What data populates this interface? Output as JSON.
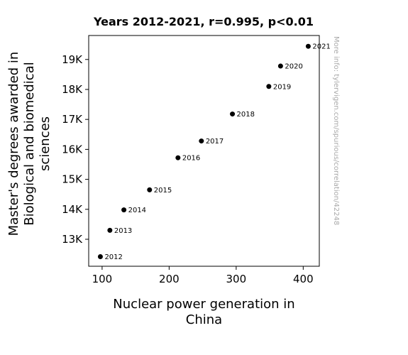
{
  "chart_data": {
    "type": "scatter",
    "title": "Years 2012-2021, r=0.995, p<0.01",
    "xlabel": [
      "Nuclear power generation in",
      "China"
    ],
    "ylabel": [
      "Master's degrees awarded in",
      "Biological and biomedical",
      "sciences"
    ],
    "xlim": [
      80,
      424
    ],
    "ylim": [
      12100,
      19800
    ],
    "xticks": [
      100,
      200,
      300,
      400
    ],
    "xtick_labels": [
      "100",
      "200",
      "300",
      "400"
    ],
    "yticks": [
      13000,
      14000,
      15000,
      16000,
      17000,
      18000,
      19000
    ],
    "ytick_labels": [
      "13K",
      "14K",
      "15K",
      "16K",
      "17K",
      "18K",
      "19K"
    ],
    "grid": false,
    "marker_color": "#000000",
    "points": [
      {
        "label": "2012",
        "x": 97.4,
        "y": 12420
      },
      {
        "label": "2013",
        "x": 111.6,
        "y": 13300
      },
      {
        "label": "2014",
        "x": 132.5,
        "y": 13980
      },
      {
        "label": "2015",
        "x": 170.8,
        "y": 14650
      },
      {
        "label": "2016",
        "x": 213.2,
        "y": 15720
      },
      {
        "label": "2017",
        "x": 248.1,
        "y": 16280
      },
      {
        "label": "2018",
        "x": 294.4,
        "y": 17180
      },
      {
        "label": "2019",
        "x": 348.7,
        "y": 18100
      },
      {
        "label": "2020",
        "x": 366.2,
        "y": 18780
      },
      {
        "label": "2021",
        "x": 407.5,
        "y": 19440
      }
    ],
    "watermark": "More info: tylervigen.com/spurious/correlation/42248"
  }
}
